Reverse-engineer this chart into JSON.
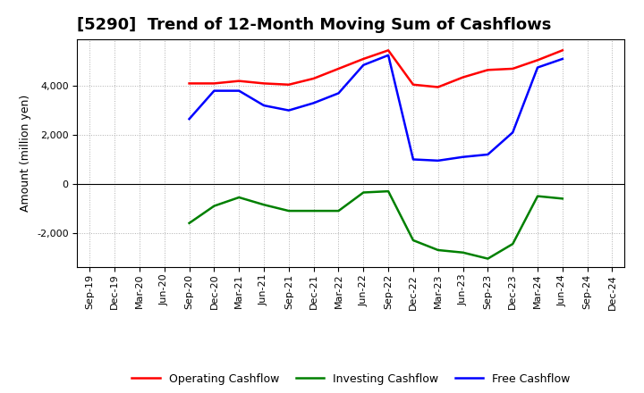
{
  "title": "[5290]  Trend of 12-Month Moving Sum of Cashflows",
  "ylabel": "Amount (million yen)",
  "x_labels": [
    "Sep-19",
    "Dec-19",
    "Mar-20",
    "Jun-20",
    "Sep-20",
    "Dec-20",
    "Mar-21",
    "Jun-21",
    "Sep-21",
    "Dec-21",
    "Mar-22",
    "Jun-22",
    "Sep-22",
    "Dec-22",
    "Mar-23",
    "Jun-23",
    "Sep-23",
    "Dec-23",
    "Mar-24",
    "Jun-24",
    "Sep-24",
    "Dec-24"
  ],
  "operating": [
    null,
    null,
    null,
    null,
    4100,
    4100,
    4200,
    4100,
    4050,
    4300,
    4700,
    5100,
    5450,
    4050,
    3950,
    4350,
    4650,
    4700,
    5050,
    5450,
    null,
    null
  ],
  "investing": [
    null,
    null,
    null,
    null,
    -1600,
    -900,
    -550,
    -850,
    -1100,
    -1100,
    -1100,
    -350,
    -300,
    -2300,
    -2700,
    -2800,
    -3050,
    -2450,
    -500,
    -600,
    null,
    null
  ],
  "free": [
    null,
    null,
    null,
    null,
    2650,
    3800,
    3800,
    3200,
    3000,
    3300,
    3700,
    4850,
    5250,
    1000,
    950,
    1100,
    1200,
    2100,
    4750,
    5100,
    null,
    null
  ],
  "operating_color": "#ff0000",
  "investing_color": "#008000",
  "free_color": "#0000ff",
  "background_color": "#ffffff",
  "grid_color": "#b0b0b0",
  "ylim": [
    -3400,
    5900
  ],
  "yticks": [
    -2000,
    0,
    2000,
    4000
  ],
  "linewidth": 1.8,
  "title_fontsize": 13,
  "title_fontweight": "bold",
  "axis_label_fontsize": 9,
  "tick_fontsize": 8,
  "legend_fontsize": 9
}
